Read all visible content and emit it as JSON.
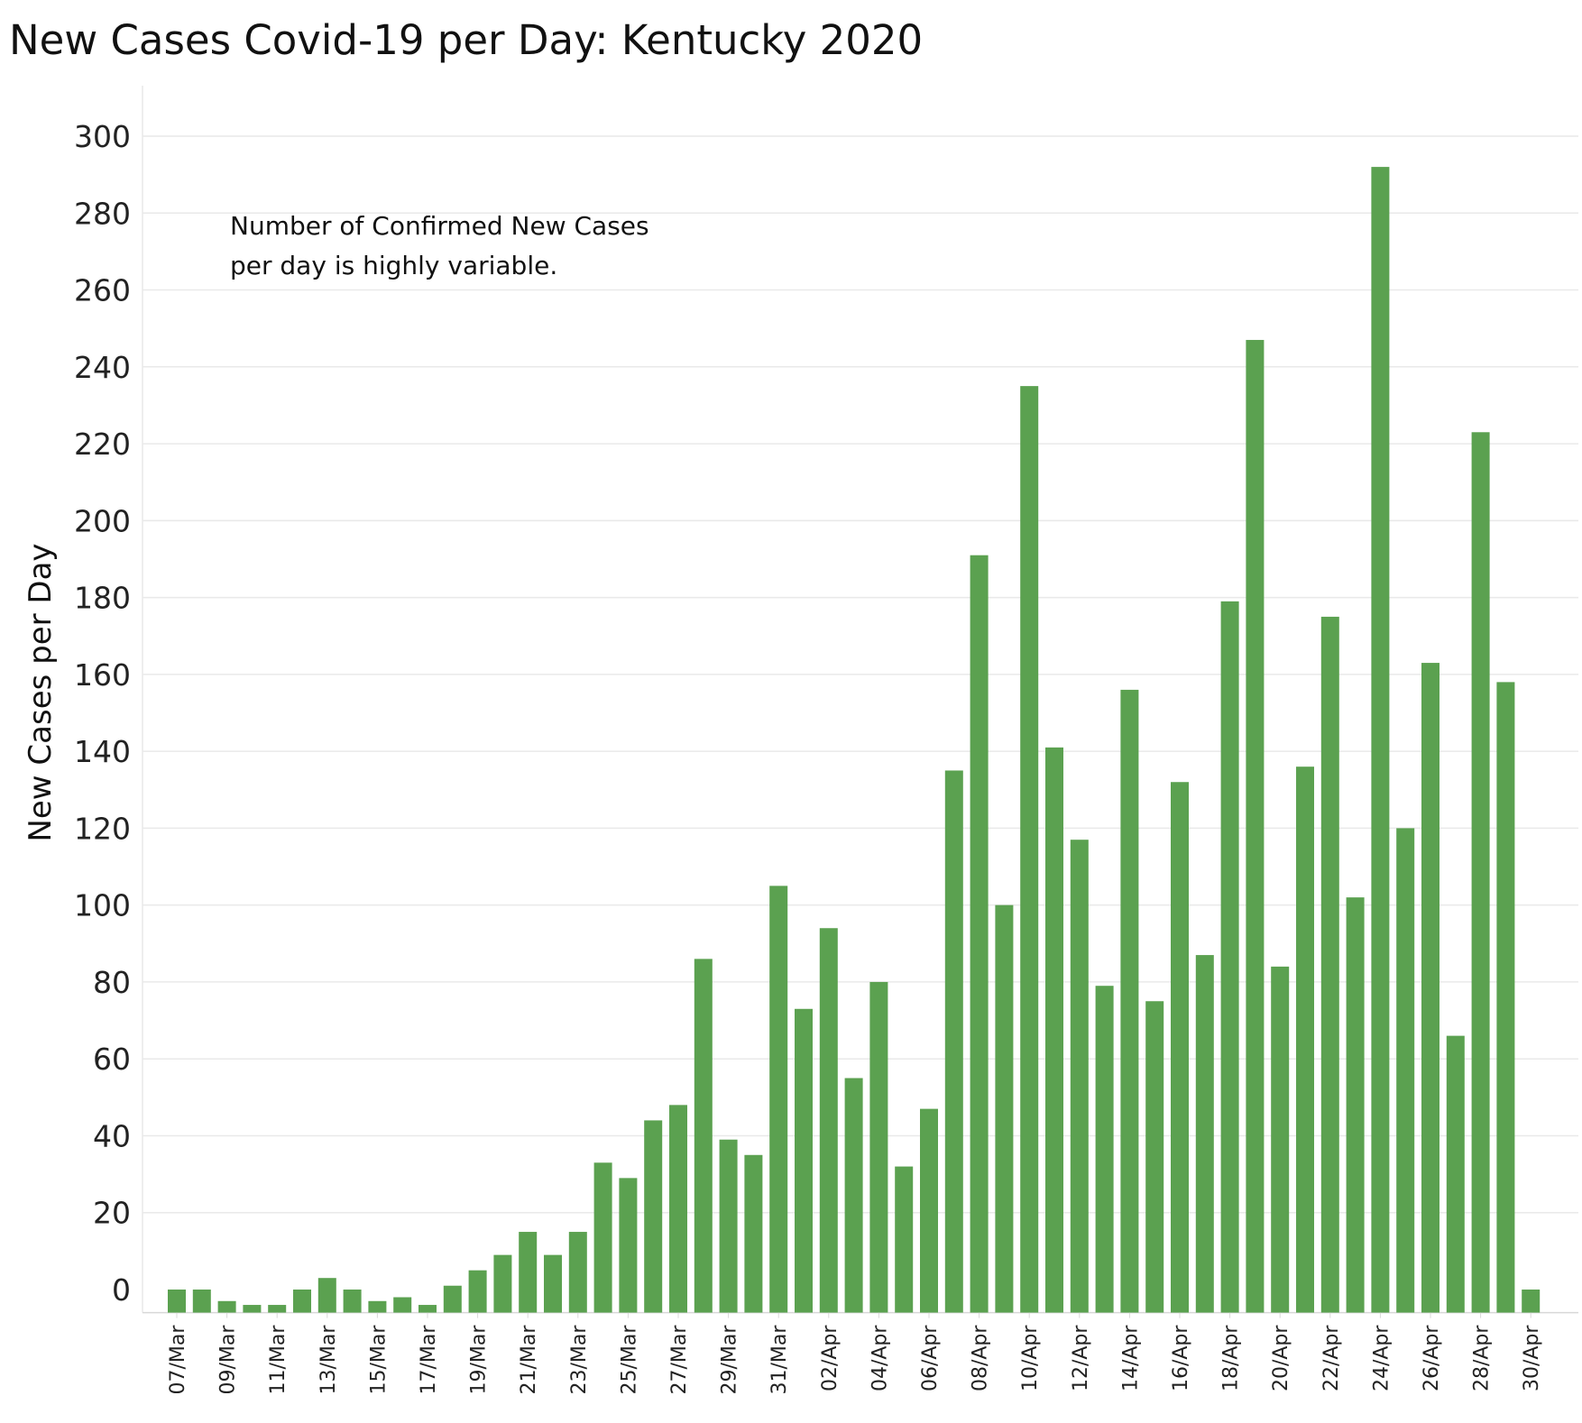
{
  "chart_data": {
    "type": "bar",
    "title": "New Cases Covid-19 per Day:  Kentucky 2020",
    "xlabel": "",
    "ylabel": "New Cases per Day",
    "ylim": [
      -6,
      310
    ],
    "yticks": [
      0,
      20,
      40,
      60,
      80,
      100,
      120,
      140,
      160,
      180,
      200,
      220,
      240,
      260,
      280,
      300
    ],
    "grid": true,
    "bar_color": "#5ba150",
    "annotation_lines": [
      "Number of Confirmed New Cases",
      "per day is highly variable."
    ],
    "x_tick_labels": [
      "07/Mar",
      "09/Mar",
      "11/Mar",
      "13/Mar",
      "15/Mar",
      "17/Mar",
      "19/Mar",
      "21/Mar",
      "23/Mar",
      "25/Mar",
      "27/Mar",
      "29/Mar",
      "31/Mar",
      "02/Apr",
      "04/Apr",
      "06/Apr",
      "08/Apr",
      "10/Apr",
      "12/Apr",
      "14/Apr",
      "16/Apr",
      "18/Apr",
      "20/Apr",
      "22/Apr",
      "24/Apr",
      "26/Apr",
      "28/Apr",
      "30/Apr"
    ],
    "categories": [
      "07/Mar",
      "08/Mar",
      "09/Mar",
      "10/Mar",
      "11/Mar",
      "12/Mar",
      "13/Mar",
      "14/Mar",
      "15/Mar",
      "16/Mar",
      "17/Mar",
      "18/Mar",
      "19/Mar",
      "20/Mar",
      "21/Mar",
      "22/Mar",
      "23/Mar",
      "24/Mar",
      "25/Mar",
      "26/Mar",
      "27/Mar",
      "28/Mar",
      "29/Mar",
      "30/Mar",
      "31/Mar",
      "01/Apr",
      "02/Apr",
      "03/Apr",
      "04/Apr",
      "05/Apr",
      "06/Apr",
      "07/Apr",
      "08/Apr",
      "09/Apr",
      "10/Apr",
      "11/Apr",
      "12/Apr",
      "13/Apr",
      "14/Apr",
      "15/Apr",
      "16/Apr",
      "17/Apr",
      "18/Apr",
      "19/Apr",
      "20/Apr",
      "21/Apr",
      "22/Apr",
      "23/Apr",
      "24/Apr",
      "25/Apr",
      "26/Apr",
      "27/Apr",
      "28/Apr",
      "29/Apr",
      "30/Apr"
    ],
    "values": [
      0,
      0,
      -3,
      -4,
      -4,
      0,
      3,
      0,
      -3,
      -2,
      -4,
      1,
      5,
      9,
      15,
      9,
      15,
      33,
      29,
      44,
      48,
      86,
      39,
      35,
      105,
      73,
      94,
      55,
      80,
      32,
      47,
      135,
      191,
      100,
      235,
      141,
      117,
      79,
      156,
      75,
      132,
      87,
      179,
      247,
      84,
      136,
      175,
      102,
      292,
      120,
      163,
      66,
      223,
      158,
      0
    ]
  }
}
